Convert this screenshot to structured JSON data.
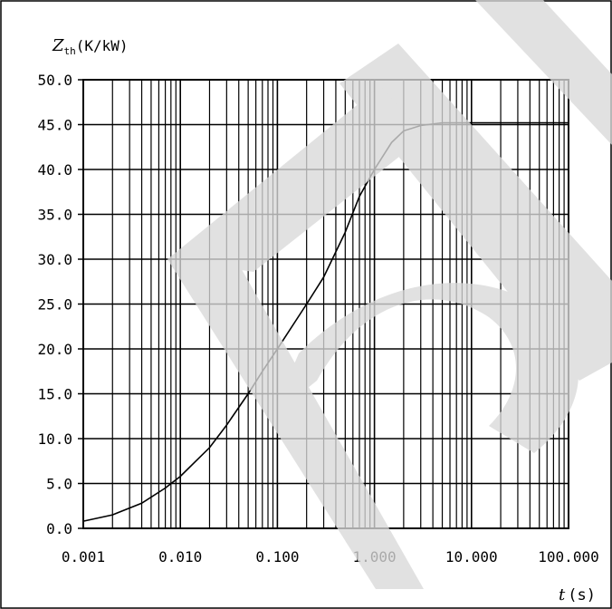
{
  "chart_data": {
    "type": "line",
    "x_scale": "log",
    "y_scale": "linear",
    "xlim": [
      0.001,
      100
    ],
    "ylim": [
      0,
      50
    ],
    "grid": true,
    "ylabel_main": "Z",
    "ylabel_sub": "th",
    "ylabel_unit": "(K/kW)",
    "xlabel_main": "t",
    "xlabel_unit": "(s)",
    "y_ticks": [
      "0.0",
      "5.0",
      "10.0",
      "15.0",
      "20.0",
      "25.0",
      "30.0",
      "35.0",
      "40.0",
      "45.0",
      "50.0"
    ],
    "y_tick_values": [
      0,
      5,
      10,
      15,
      20,
      25,
      30,
      35,
      40,
      45,
      50
    ],
    "x_ticks": [
      "0.001",
      "0.010",
      "0.100",
      "1.000",
      "10.000",
      "100.000"
    ],
    "x_tick_values": [
      0.001,
      0.01,
      0.1,
      1,
      10,
      100
    ],
    "series": [
      {
        "x": [
          0.001,
          0.002,
          0.004,
          0.007,
          0.01,
          0.02,
          0.03,
          0.05,
          0.07,
          0.1,
          0.2,
          0.3,
          0.5,
          0.7,
          1,
          1.5,
          2,
          3,
          5,
          10,
          30,
          100
        ],
        "y": [
          0.8,
          1.5,
          2.8,
          4.5,
          5.8,
          9,
          11.5,
          15,
          17.5,
          20,
          25,
          28,
          33,
          37,
          40,
          43,
          44.3,
          44.9,
          45.2,
          45.2,
          45.2,
          45.2
        ]
      }
    ],
    "watermark": "R"
  }
}
